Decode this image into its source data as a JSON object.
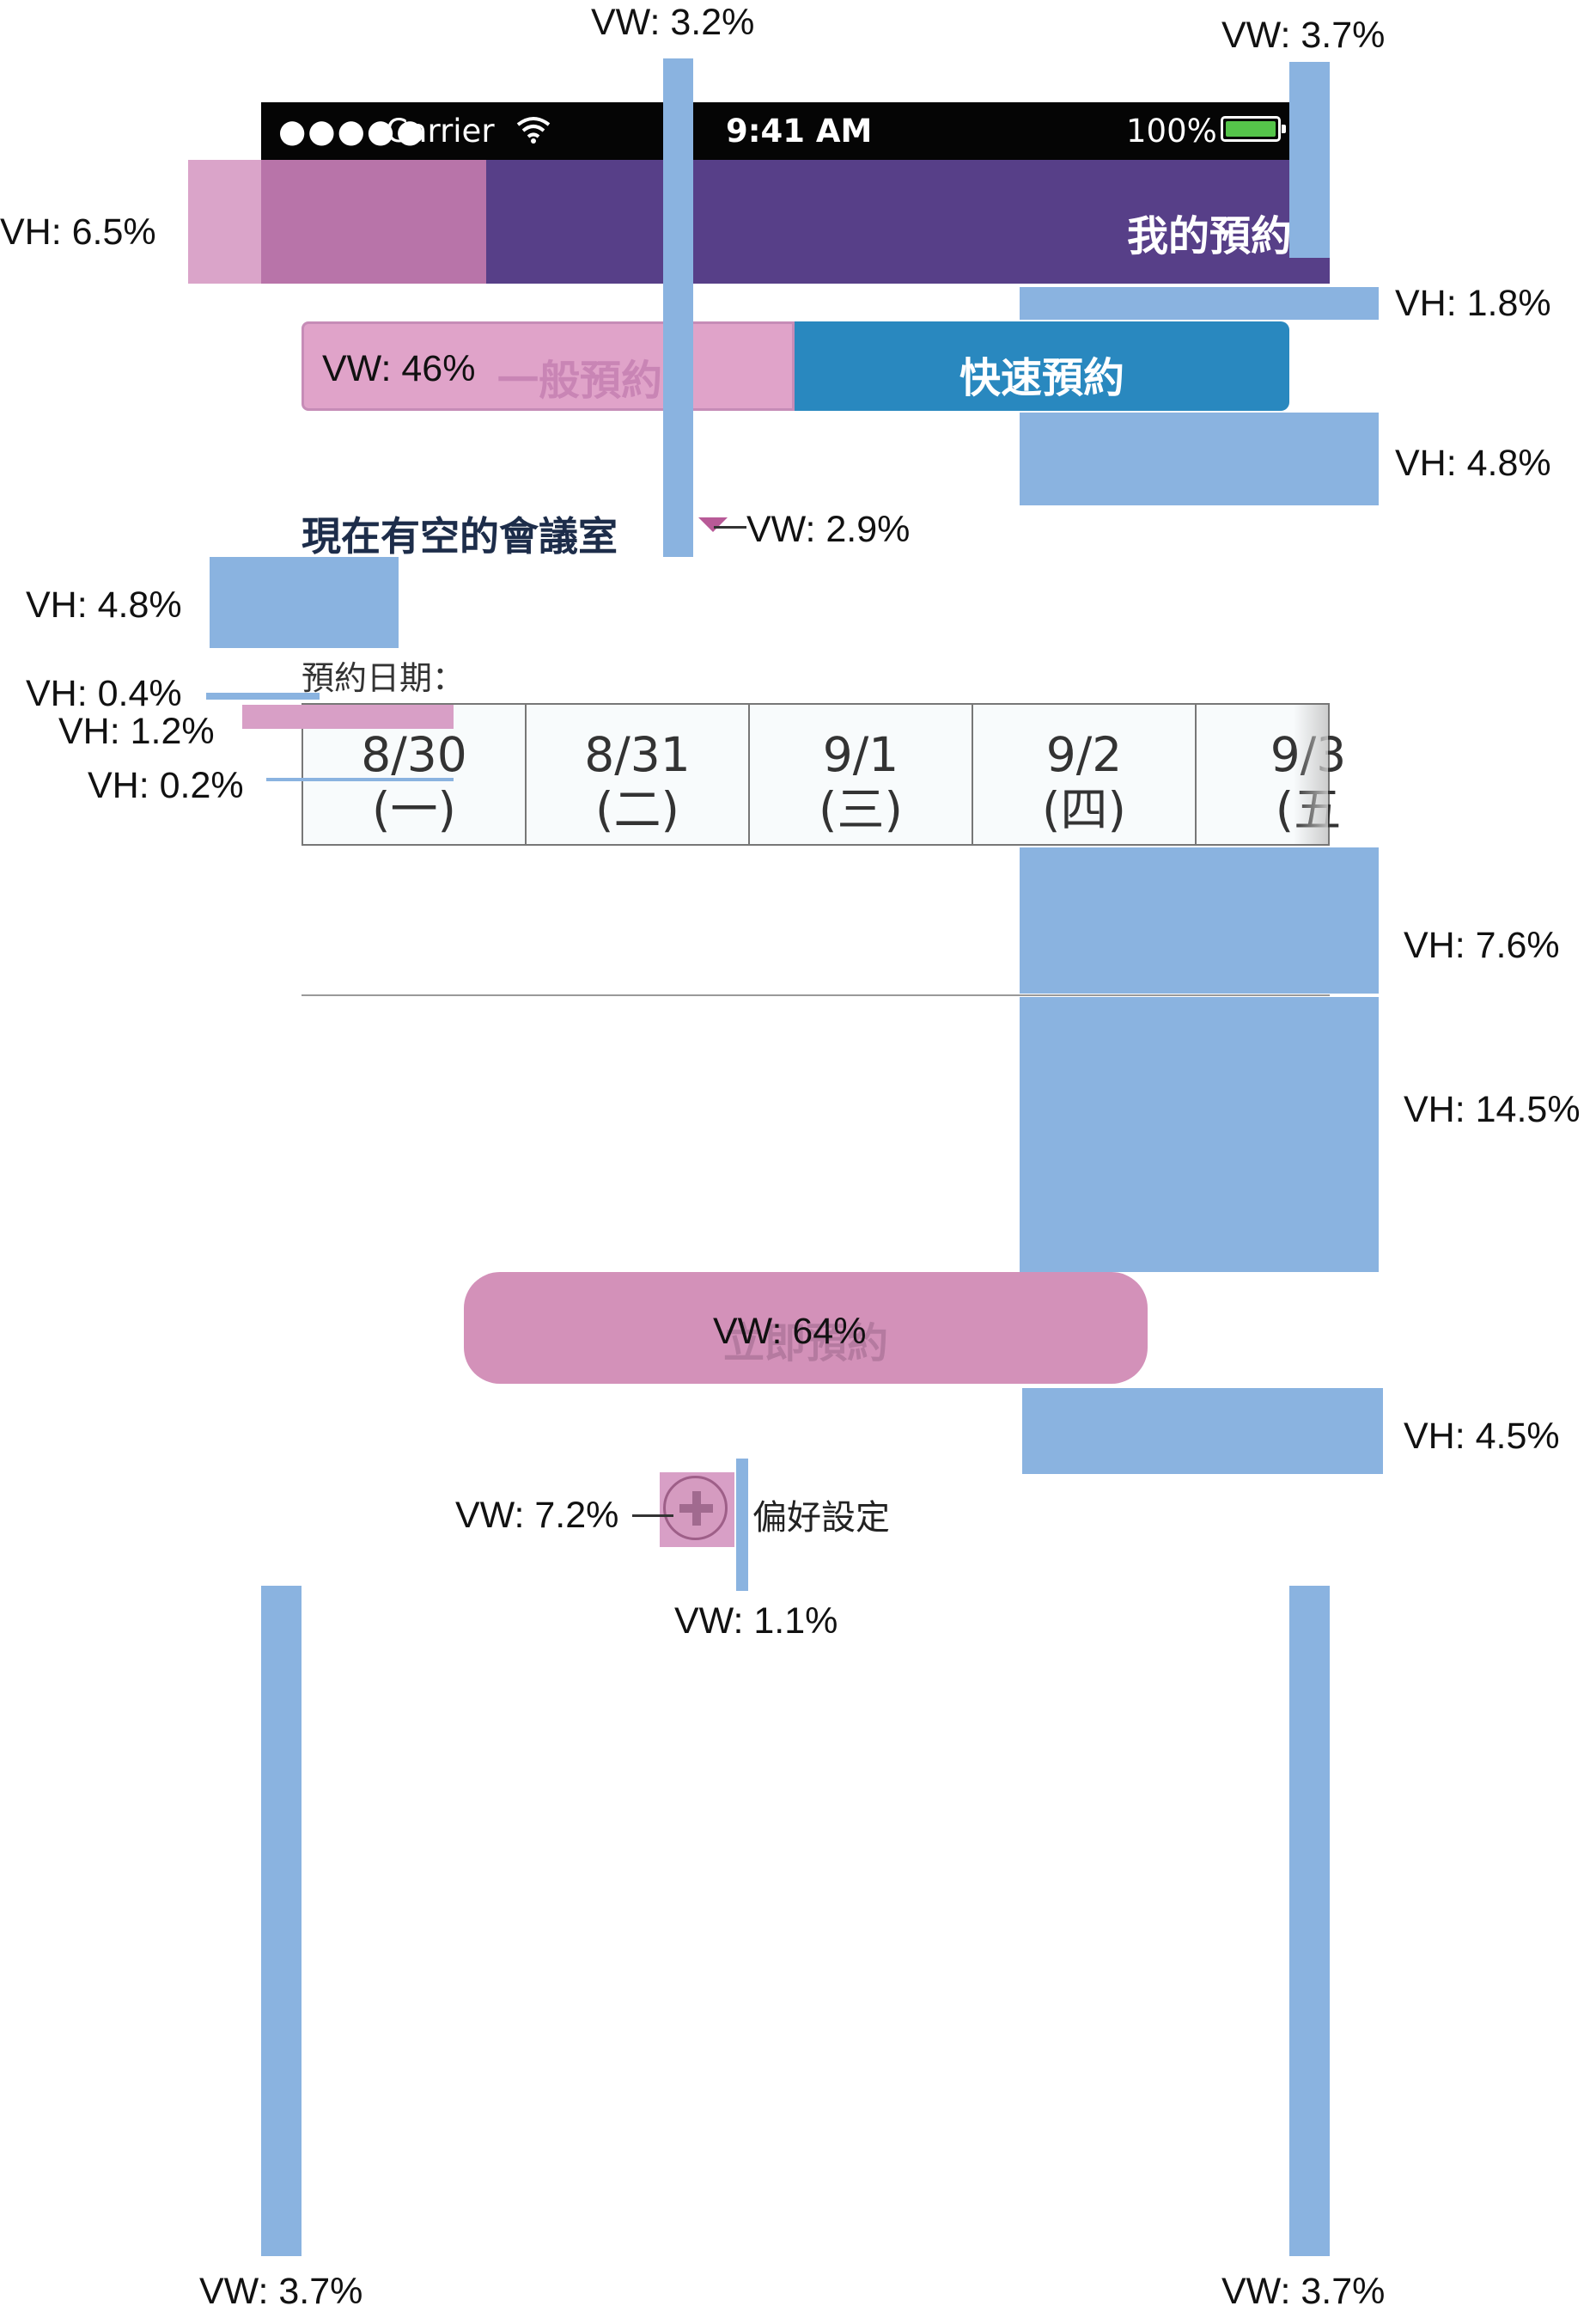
{
  "status_bar": {
    "signal": "●●●●●",
    "carrier": "Carrier",
    "wifi_icon": "wifi-icon",
    "time": "9:41 AM",
    "battery_percent": "100%",
    "battery_icon": "battery-icon"
  },
  "header": {
    "title": "我的預約",
    "color": "#573f88"
  },
  "tabs": [
    {
      "label": "一般預約",
      "selected": false
    },
    {
      "label": "快速預約",
      "selected": true
    }
  ],
  "section": {
    "title": "現在有空的會議室",
    "dropdown_icon": "chevron-down-icon"
  },
  "date_picker": {
    "label": "預約日期：",
    "dates": [
      {
        "date": "8/30",
        "weekday": "(一)"
      },
      {
        "date": "8/31",
        "weekday": "(二)"
      },
      {
        "date": "9/1",
        "weekday": "(三)"
      },
      {
        "date": "9/2",
        "weekday": "(四)"
      },
      {
        "date": "9/3",
        "weekday": "(五"
      }
    ]
  },
  "submit": {
    "label": "立即預約"
  },
  "preferences": {
    "label": "偏好設定",
    "icon": "plus-circle-icon"
  },
  "annotations": {
    "vw_top_center": "VW: 3.2%",
    "vw_top_right": "VW: 3.7%",
    "vh_header": "VH: 6.5%",
    "vh_after_header": "VH: 1.8%",
    "vw_tab": "VW: 46%",
    "vh_after_tabs": "VH: 4.8%",
    "vw_arrow": "VW: 2.9%",
    "vh_left_gap": "VH: 4.8%",
    "vh_04": "VH: 0.4%",
    "vh_12": "VH: 1.2%",
    "vh_02": "VH: 0.2%",
    "vh_76": "VH: 7.6%",
    "vh_145": "VH: 14.5%",
    "vw_button": "VW: 64%",
    "vh_45": "VH: 4.5%",
    "vw_icon": "VW: 7.2%",
    "vw_gap": "VW: 1.1%",
    "vw_bottom_left": "VW: 3.7%",
    "vw_bottom_right": "VW: 3.7%"
  },
  "colors": {
    "guide_blue": "#8ab3e0",
    "guide_pink": "#d89fc6",
    "tab_active": "#2988bf"
  }
}
